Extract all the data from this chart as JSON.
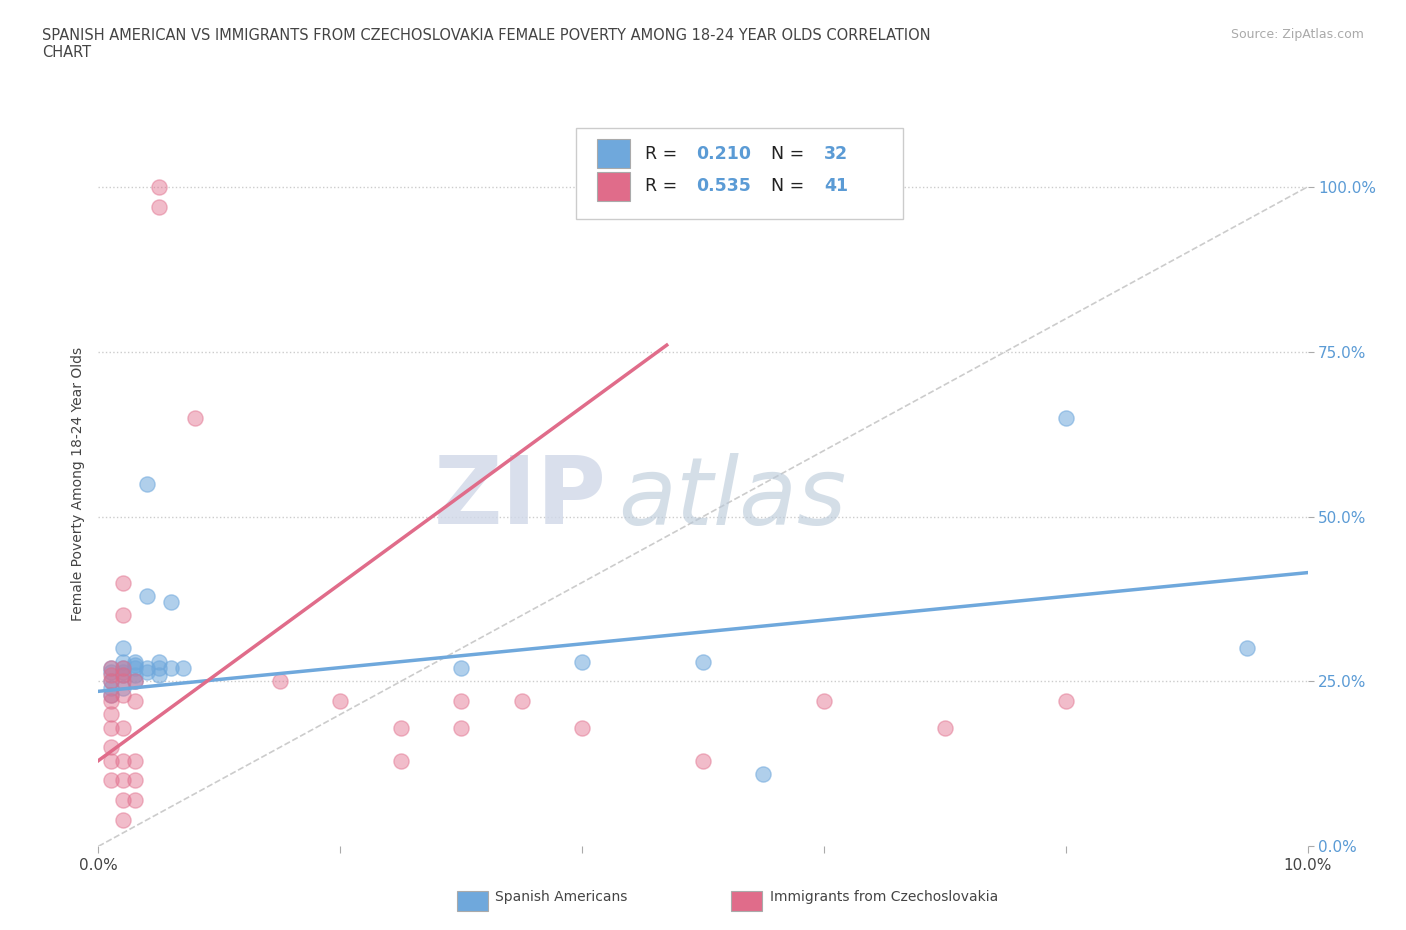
{
  "title": "SPANISH AMERICAN VS IMMIGRANTS FROM CZECHOSLOVAKIA FEMALE POVERTY AMONG 18-24 YEAR OLDS CORRELATION\nCHART",
  "source": "Source: ZipAtlas.com",
  "ylabel": "Female Poverty Among 18-24 Year Olds",
  "xlim": [
    0.0,
    0.1
  ],
  "ylim": [
    0.0,
    1.1
  ],
  "yticks": [
    0.0,
    0.25,
    0.5,
    0.75,
    1.0
  ],
  "ytick_labels": [
    "0.0%",
    "25.0%",
    "50.0%",
    "75.0%",
    "100.0%"
  ],
  "xticks": [
    0.0,
    0.02,
    0.04,
    0.06,
    0.08,
    0.1
  ],
  "xtick_labels": [
    "0.0%",
    "",
    "",
    "",
    "",
    "10.0%"
  ],
  "watermark_zip": "ZIP",
  "watermark_atlas": "atlas",
  "color_blue": "#6fa8dc",
  "color_pink": "#e06c8a",
  "R_blue": 0.21,
  "N_blue": 32,
  "R_pink": 0.535,
  "N_pink": 41,
  "blue_scatter": [
    [
      0.001,
      0.27
    ],
    [
      0.001,
      0.265
    ],
    [
      0.001,
      0.24
    ],
    [
      0.001,
      0.25
    ],
    [
      0.001,
      0.23
    ],
    [
      0.002,
      0.27
    ],
    [
      0.002,
      0.265
    ],
    [
      0.002,
      0.26
    ],
    [
      0.002,
      0.28
    ],
    [
      0.002,
      0.24
    ],
    [
      0.002,
      0.3
    ],
    [
      0.003,
      0.28
    ],
    [
      0.003,
      0.275
    ],
    [
      0.003,
      0.26
    ],
    [
      0.003,
      0.25
    ],
    [
      0.003,
      0.27
    ],
    [
      0.004,
      0.55
    ],
    [
      0.004,
      0.27
    ],
    [
      0.004,
      0.265
    ],
    [
      0.004,
      0.38
    ],
    [
      0.005,
      0.27
    ],
    [
      0.005,
      0.28
    ],
    [
      0.005,
      0.26
    ],
    [
      0.006,
      0.37
    ],
    [
      0.006,
      0.27
    ],
    [
      0.007,
      0.27
    ],
    [
      0.03,
      0.27
    ],
    [
      0.04,
      0.28
    ],
    [
      0.05,
      0.28
    ],
    [
      0.055,
      0.11
    ],
    [
      0.08,
      0.65
    ],
    [
      0.095,
      0.3
    ]
  ],
  "pink_scatter": [
    [
      0.001,
      0.27
    ],
    [
      0.001,
      0.26
    ],
    [
      0.001,
      0.25
    ],
    [
      0.001,
      0.23
    ],
    [
      0.001,
      0.22
    ],
    [
      0.001,
      0.2
    ],
    [
      0.001,
      0.18
    ],
    [
      0.001,
      0.15
    ],
    [
      0.001,
      0.13
    ],
    [
      0.001,
      0.1
    ],
    [
      0.002,
      0.27
    ],
    [
      0.002,
      0.26
    ],
    [
      0.002,
      0.25
    ],
    [
      0.002,
      0.23
    ],
    [
      0.002,
      0.4
    ],
    [
      0.002,
      0.35
    ],
    [
      0.002,
      0.18
    ],
    [
      0.002,
      0.13
    ],
    [
      0.002,
      0.1
    ],
    [
      0.002,
      0.07
    ],
    [
      0.002,
      0.04
    ],
    [
      0.003,
      0.25
    ],
    [
      0.003,
      0.22
    ],
    [
      0.003,
      0.13
    ],
    [
      0.003,
      0.1
    ],
    [
      0.003,
      0.07
    ],
    [
      0.005,
      0.97
    ],
    [
      0.005,
      1.0
    ],
    [
      0.008,
      0.65
    ],
    [
      0.015,
      0.25
    ],
    [
      0.02,
      0.22
    ],
    [
      0.025,
      0.18
    ],
    [
      0.025,
      0.13
    ],
    [
      0.03,
      0.22
    ],
    [
      0.03,
      0.18
    ],
    [
      0.035,
      0.22
    ],
    [
      0.04,
      0.18
    ],
    [
      0.05,
      0.13
    ],
    [
      0.06,
      0.22
    ],
    [
      0.07,
      0.18
    ],
    [
      0.08,
      0.22
    ]
  ],
  "blue_line_x": [
    0.0,
    0.1
  ],
  "blue_line_y": [
    0.235,
    0.415
  ],
  "pink_line_x": [
    0.0,
    0.047
  ],
  "pink_line_y": [
    0.13,
    0.76
  ],
  "diag_line_x": [
    0.0,
    0.1
  ],
  "diag_line_y": [
    0.0,
    1.0
  ],
  "background_color": "#ffffff",
  "grid_color": "#cccccc"
}
